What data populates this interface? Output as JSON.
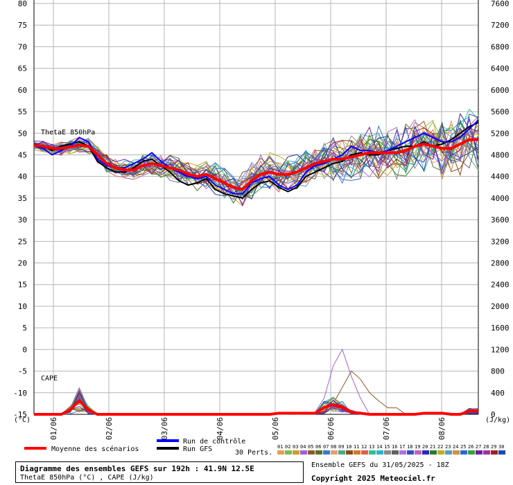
{
  "chart_data": {
    "type": "line",
    "x_dates": [
      "01/06",
      "02/06",
      "03/06",
      "04/06",
      "05/06",
      "06/06",
      "07/06",
      "08/06"
    ],
    "left_axis": {
      "unit": "(°C)",
      "ticks": [
        80,
        75,
        70,
        65,
        60,
        55,
        50,
        45,
        40,
        35,
        30,
        25,
        20,
        15,
        10,
        5,
        0,
        -5,
        -10,
        -15
      ],
      "ylim": [
        -15,
        80
      ]
    },
    "right_axis": {
      "unit": "(J/kg)",
      "ticks": [
        7600,
        7200,
        6800,
        6400,
        6000,
        5600,
        5200,
        4800,
        4400,
        4000,
        3600,
        3200,
        2800,
        2400,
        2000,
        1600,
        1200,
        800,
        400,
        0
      ]
    },
    "panel_labels": {
      "thetae": "ThetaE 850hPa",
      "cape": "CAPE"
    },
    "theta_mean": [
      47.2,
      47.0,
      46.5,
      46.5,
      46.8,
      47.2,
      47.0,
      45.0,
      43.0,
      42.0,
      41.5,
      41.5,
      42.5,
      43.0,
      42.5,
      42.0,
      41.5,
      40.5,
      40.0,
      40.5,
      39.5,
      38.5,
      37.5,
      37.0,
      39.0,
      40.5,
      41.0,
      40.5,
      40.5,
      41.0,
      42.0,
      43.0,
      43.5,
      44.0,
      44.0,
      44.5,
      45.0,
      45.5,
      45.5,
      45.5,
      45.5,
      46.0,
      47.0,
      47.5,
      47.0,
      46.5,
      46.5,
      47.5,
      48.5,
      48.5
    ],
    "theta_control": [
      47.0,
      46.5,
      45.0,
      46.0,
      47.0,
      49.0,
      48.0,
      44.0,
      42.5,
      42.0,
      42.0,
      43.0,
      44.0,
      45.5,
      43.5,
      42.0,
      41.0,
      40.0,
      39.5,
      40.0,
      38.0,
      37.0,
      36.0,
      36.0,
      38.5,
      39.5,
      40.0,
      38.0,
      37.0,
      38.0,
      41.0,
      42.5,
      43.0,
      44.0,
      45.0,
      47.0,
      46.0,
      46.0,
      45.5,
      46.0,
      47.0,
      48.0,
      49.0,
      50.0,
      49.0,
      48.0,
      48.0,
      49.0,
      51.0,
      53.0
    ],
    "theta_gfs": [
      47.5,
      47.0,
      46.0,
      47.0,
      47.5,
      48.0,
      47.0,
      43.5,
      42.0,
      41.0,
      41.0,
      42.0,
      43.5,
      44.0,
      42.5,
      41.0,
      39.0,
      38.0,
      38.5,
      39.5,
      37.0,
      36.0,
      35.5,
      35.0,
      37.0,
      38.5,
      39.0,
      37.5,
      36.5,
      37.5,
      40.0,
      41.0,
      42.0,
      43.0,
      43.5,
      45.0,
      45.5,
      45.0,
      45.0,
      46.0,
      46.5,
      47.0,
      47.0,
      48.0,
      47.0,
      47.5,
      48.5,
      50.0,
      51.5,
      52.5
    ],
    "cape_mean": [
      0,
      0,
      0,
      0,
      80,
      260,
      80,
      0,
      0,
      0,
      0,
      0,
      0,
      0,
      0,
      0,
      0,
      0,
      0,
      0,
      0,
      0,
      0,
      0,
      0,
      0,
      0,
      20,
      20,
      20,
      20,
      20,
      130,
      180,
      130,
      40,
      20,
      0,
      0,
      0,
      0,
      0,
      0,
      20,
      20,
      20,
      0,
      0,
      60,
      60
    ],
    "legend": {
      "mean": "Moyenne des scénarios",
      "control": "Run de contrôle",
      "gfs": "Run GFS",
      "perts_label": "30 Perts.",
      "perts_numbers": [
        "01",
        "02",
        "03",
        "04",
        "05",
        "06",
        "07",
        "08",
        "09",
        "10",
        "11",
        "12",
        "13",
        "14",
        "15",
        "16",
        "17",
        "18",
        "19",
        "20",
        "21",
        "22",
        "23",
        "24",
        "25",
        "26",
        "27",
        "28",
        "29",
        "30"
      ],
      "perts_colors": [
        "#e8a050",
        "#7dbb55",
        "#c8a028",
        "#a060d0",
        "#8c5a2a",
        "#5a6e2a",
        "#3a7ad0",
        "#e0a070",
        "#4aaa8a",
        "#8a4a1a",
        "#d07a2a",
        "#e06050",
        "#30c090",
        "#30b0d0",
        "#8a8a8a",
        "#606060",
        "#b070e0",
        "#3050c0",
        "#c060c0",
        "#2a2ab0",
        "#2a7a2a",
        "#c0b020",
        "#50a0c0",
        "#d09040",
        "#2a6ad0",
        "#3aa040",
        "#7020a0",
        "#a030a0",
        "#a02020",
        "#1a4ab0"
      ]
    },
    "colors": {
      "mean": "#ff0000",
      "control": "#0000ff",
      "gfs": "#000000",
      "grid": "#b4b4b4",
      "axis": "#000000"
    }
  },
  "footer": {
    "title": "Diagramme des ensembles GEFS sur 192h : 41.9N 12.5E",
    "subtitle": "ThetaE 850hPa (°C) , CAPE (J/kg)",
    "info": "Ensemble GEFS du 31/05/2025 - 18Z",
    "copyright": "Copyright 2025 Meteociel.fr"
  }
}
